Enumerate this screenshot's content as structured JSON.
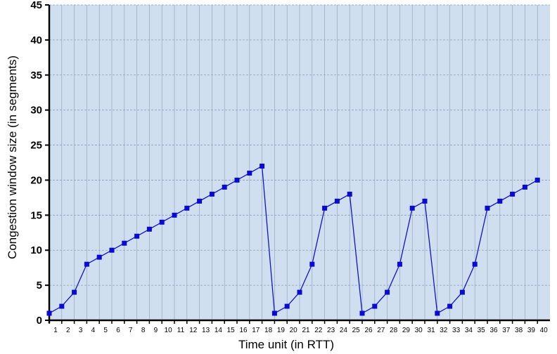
{
  "chart_data": {
    "type": "line",
    "xlabel": "Time unit (in RTT)",
    "ylabel": "Congestion window size (in segments)",
    "ylim": [
      0,
      45
    ],
    "yticks": [
      0,
      5,
      10,
      15,
      20,
      25,
      30,
      35,
      40,
      45
    ],
    "xlim": [
      1,
      40
    ],
    "grid": true,
    "legend": "none",
    "colors": {
      "plot_bg": "#cfdff0",
      "grid": "#8a9fb8",
      "line": "#1414c8",
      "marker": "#0a0ad2"
    },
    "x": [
      1,
      2,
      3,
      4,
      5,
      6,
      7,
      8,
      9,
      10,
      11,
      12,
      13,
      14,
      15,
      16,
      17,
      18,
      19,
      20,
      21,
      22,
      23,
      24,
      25,
      26,
      27,
      28,
      29,
      30,
      31,
      32,
      33,
      34,
      35,
      36,
      37,
      38,
      39,
      40
    ],
    "series": [
      {
        "values": [
          1,
          2,
          4,
          8,
          9,
          10,
          11,
          12,
          13,
          14,
          15,
          16,
          17,
          18,
          19,
          20,
          21,
          22,
          1,
          2,
          4,
          8,
          16,
          17,
          18,
          1,
          2,
          4,
          8,
          16,
          17,
          1,
          2,
          4,
          8,
          16,
          17,
          18,
          19,
          20
        ]
      }
    ]
  }
}
